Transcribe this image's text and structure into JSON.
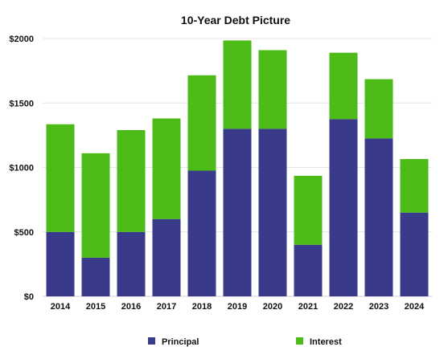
{
  "chart_data": {
    "type": "bar",
    "stacked": true,
    "title": "10-Year Debt Picture",
    "categories": [
      "2014",
      "2015",
      "2016",
      "2017",
      "2018",
      "2019",
      "2020",
      "2021",
      "2022",
      "2023",
      "2024"
    ],
    "series": [
      {
        "name": "Principal",
        "color": "#3a3a8a",
        "values": [
          500,
          300,
          500,
          600,
          975,
          1300,
          1300,
          400,
          1375,
          1225,
          650
        ]
      },
      {
        "name": "Interest",
        "color": "#4cbb17",
        "values": [
          835,
          810,
          790,
          780,
          740,
          685,
          610,
          535,
          515,
          460,
          415
        ]
      }
    ],
    "ylim": [
      0,
      2000
    ],
    "yticks": [
      0,
      500,
      1000,
      1500,
      2000
    ],
    "ytick_labels": [
      "$0",
      "$500",
      "$1000",
      "$1500",
      "$2000"
    ],
    "xlabel": "",
    "ylabel": "",
    "grid": true,
    "legend": "bottom"
  }
}
